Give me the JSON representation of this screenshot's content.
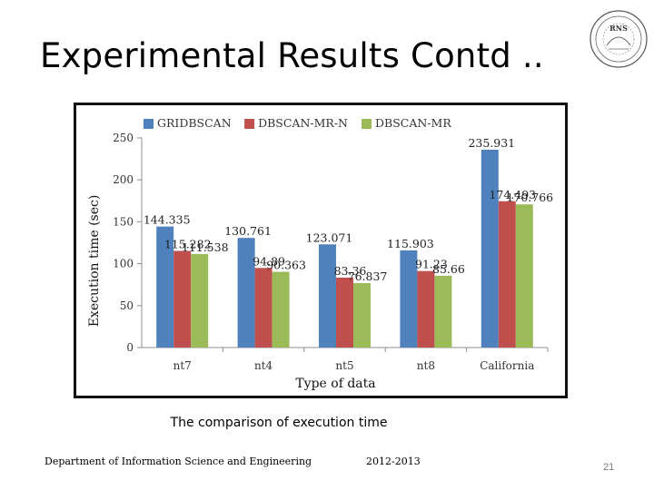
{
  "slide": {
    "title": "Experimental Results Contd ..",
    "caption": "The comparison of execution time",
    "department": "Department of Information Science and Engineering",
    "year": "2012-2013",
    "page_number": "21",
    "logo_text": "RNS"
  },
  "chart_data": {
    "type": "bar",
    "categories": [
      "nt7",
      "nt4",
      "nt5",
      "nt8",
      "California"
    ],
    "series": [
      {
        "name": "GRIDBSCAN",
        "color": "#4f81bd",
        "values": [
          144.335,
          130.761,
          123.071,
          115.903,
          235.931
        ],
        "labels": [
          "144.335",
          "130.761",
          "123.071",
          "115.903",
          "235.931"
        ]
      },
      {
        "name": "DBSCAN-MR-N",
        "color": "#c0504d",
        "values": [
          115.282,
          94.89,
          83.36,
          91.23,
          174.493
        ],
        "labels": [
          "115.282",
          "94.89",
          "83.36",
          "91.23",
          "174.493"
        ]
      },
      {
        "name": "DBSCAN-MR",
        "color": "#9bbb59",
        "values": [
          111.538,
          90.363,
          76.837,
          85.66,
          170.766
        ],
        "labels": [
          "111.538",
          "90.363",
          "76.837",
          "85.66",
          "170.766"
        ]
      }
    ],
    "xlabel": "Type of data",
    "ylabel": "Execution time (sec)",
    "ylim": [
      0,
      250
    ],
    "yticks": [
      0,
      50,
      100,
      150,
      200,
      250
    ],
    "legend": "top",
    "grid": false
  }
}
